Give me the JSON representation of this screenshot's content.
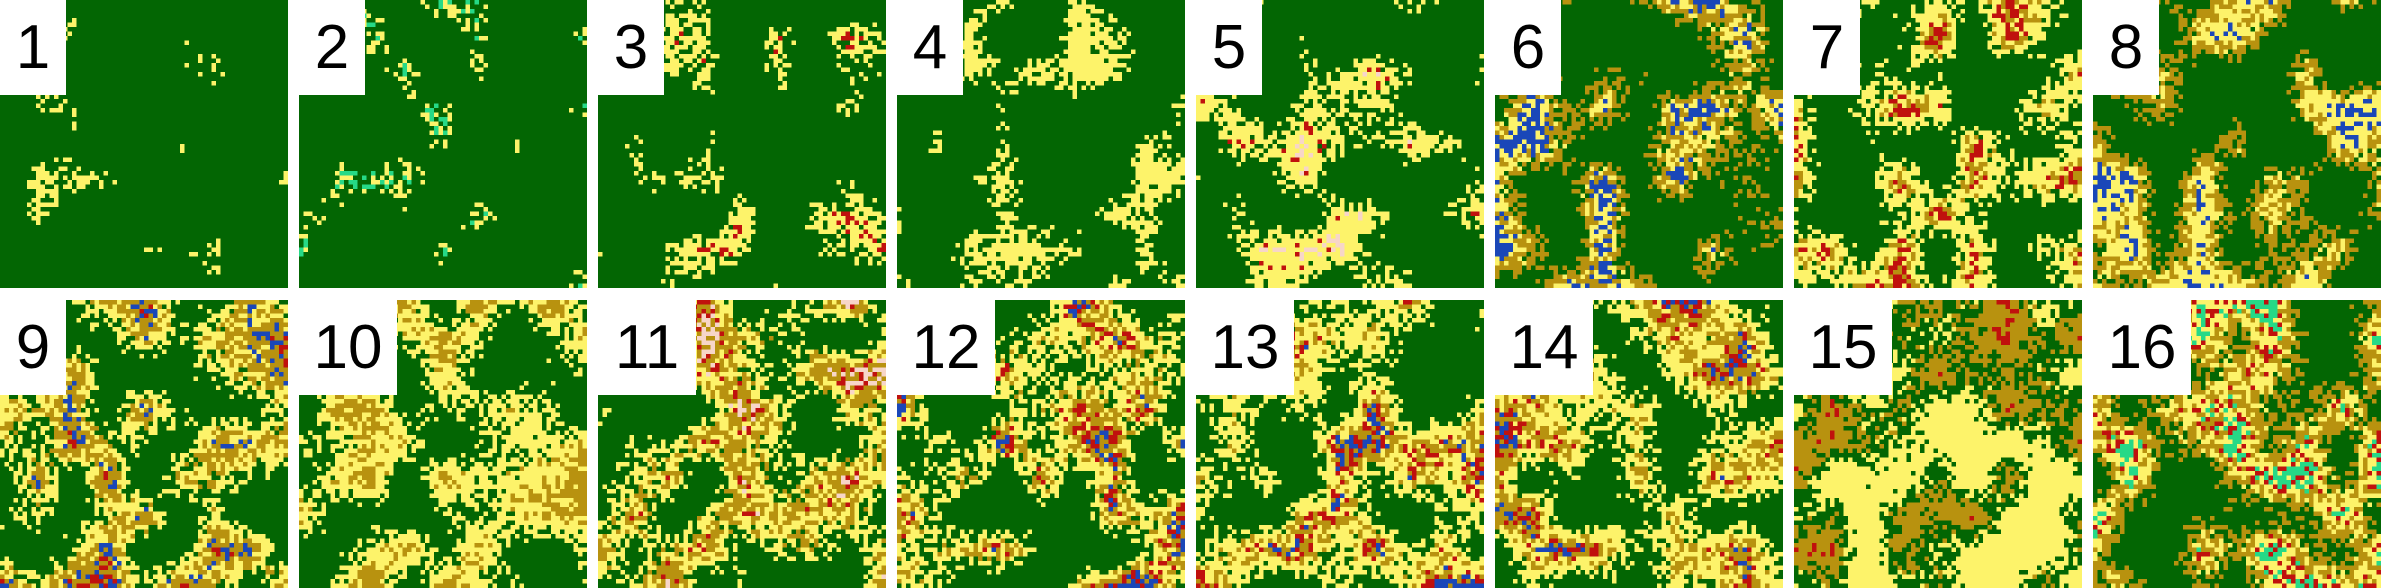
{
  "colors": {
    "forest": "#036603",
    "savanna": "#fdf36a",
    "grassland": "#b8920f",
    "urban": "#c0110d",
    "water": "#1a47b8",
    "wetland": "#26d987",
    "barren": "#f7d6c8"
  },
  "tiles": [
    {
      "label": "1",
      "mix": {
        "forest": 0.96,
        "savanna": 0.04
      }
    },
    {
      "label": "2",
      "mix": {
        "forest": 0.93,
        "savanna": 0.05,
        "wetland": 0.02
      }
    },
    {
      "label": "3",
      "mix": {
        "forest": 0.86,
        "savanna": 0.13,
        "urban": 0.01
      }
    },
    {
      "label": "4",
      "mix": {
        "forest": 0.8,
        "savanna": 0.2
      }
    },
    {
      "label": "5",
      "mix": {
        "forest": 0.74,
        "savanna": 0.24,
        "urban": 0.01,
        "barren": 0.01
      }
    },
    {
      "label": "6",
      "mix": {
        "forest": 0.62,
        "grassland": 0.22,
        "savanna": 0.1,
        "water": 0.06
      }
    },
    {
      "label": "7",
      "mix": {
        "forest": 0.6,
        "savanna": 0.3,
        "grassland": 0.06,
        "urban": 0.04
      }
    },
    {
      "label": "8",
      "mix": {
        "forest": 0.55,
        "grassland": 0.25,
        "savanna": 0.17,
        "water": 0.03
      }
    },
    {
      "label": "9",
      "mix": {
        "forest": 0.5,
        "savanna": 0.28,
        "grassland": 0.18,
        "water": 0.03,
        "urban": 0.01
      }
    },
    {
      "label": "10",
      "mix": {
        "forest": 0.52,
        "savanna": 0.38,
        "grassland": 0.1
      }
    },
    {
      "label": "11",
      "mix": {
        "forest": 0.48,
        "savanna": 0.3,
        "grassland": 0.18,
        "urban": 0.02,
        "barren": 0.02
      }
    },
    {
      "label": "12",
      "mix": {
        "forest": 0.5,
        "savanna": 0.32,
        "grassland": 0.12,
        "urban": 0.04,
        "water": 0.02
      }
    },
    {
      "label": "13",
      "mix": {
        "forest": 0.46,
        "savanna": 0.38,
        "grassland": 0.1,
        "urban": 0.04,
        "water": 0.02
      }
    },
    {
      "label": "14",
      "mix": {
        "forest": 0.42,
        "savanna": 0.36,
        "grassland": 0.16,
        "urban": 0.04,
        "water": 0.02
      }
    },
    {
      "label": "15",
      "mix": {
        "forest": 0.34,
        "savanna": 0.4,
        "grassland": 0.25,
        "urban": 0.01
      }
    },
    {
      "label": "16",
      "mix": {
        "forest": 0.4,
        "grassland": 0.3,
        "savanna": 0.2,
        "urban": 0.05,
        "wetland": 0.05
      }
    }
  ]
}
